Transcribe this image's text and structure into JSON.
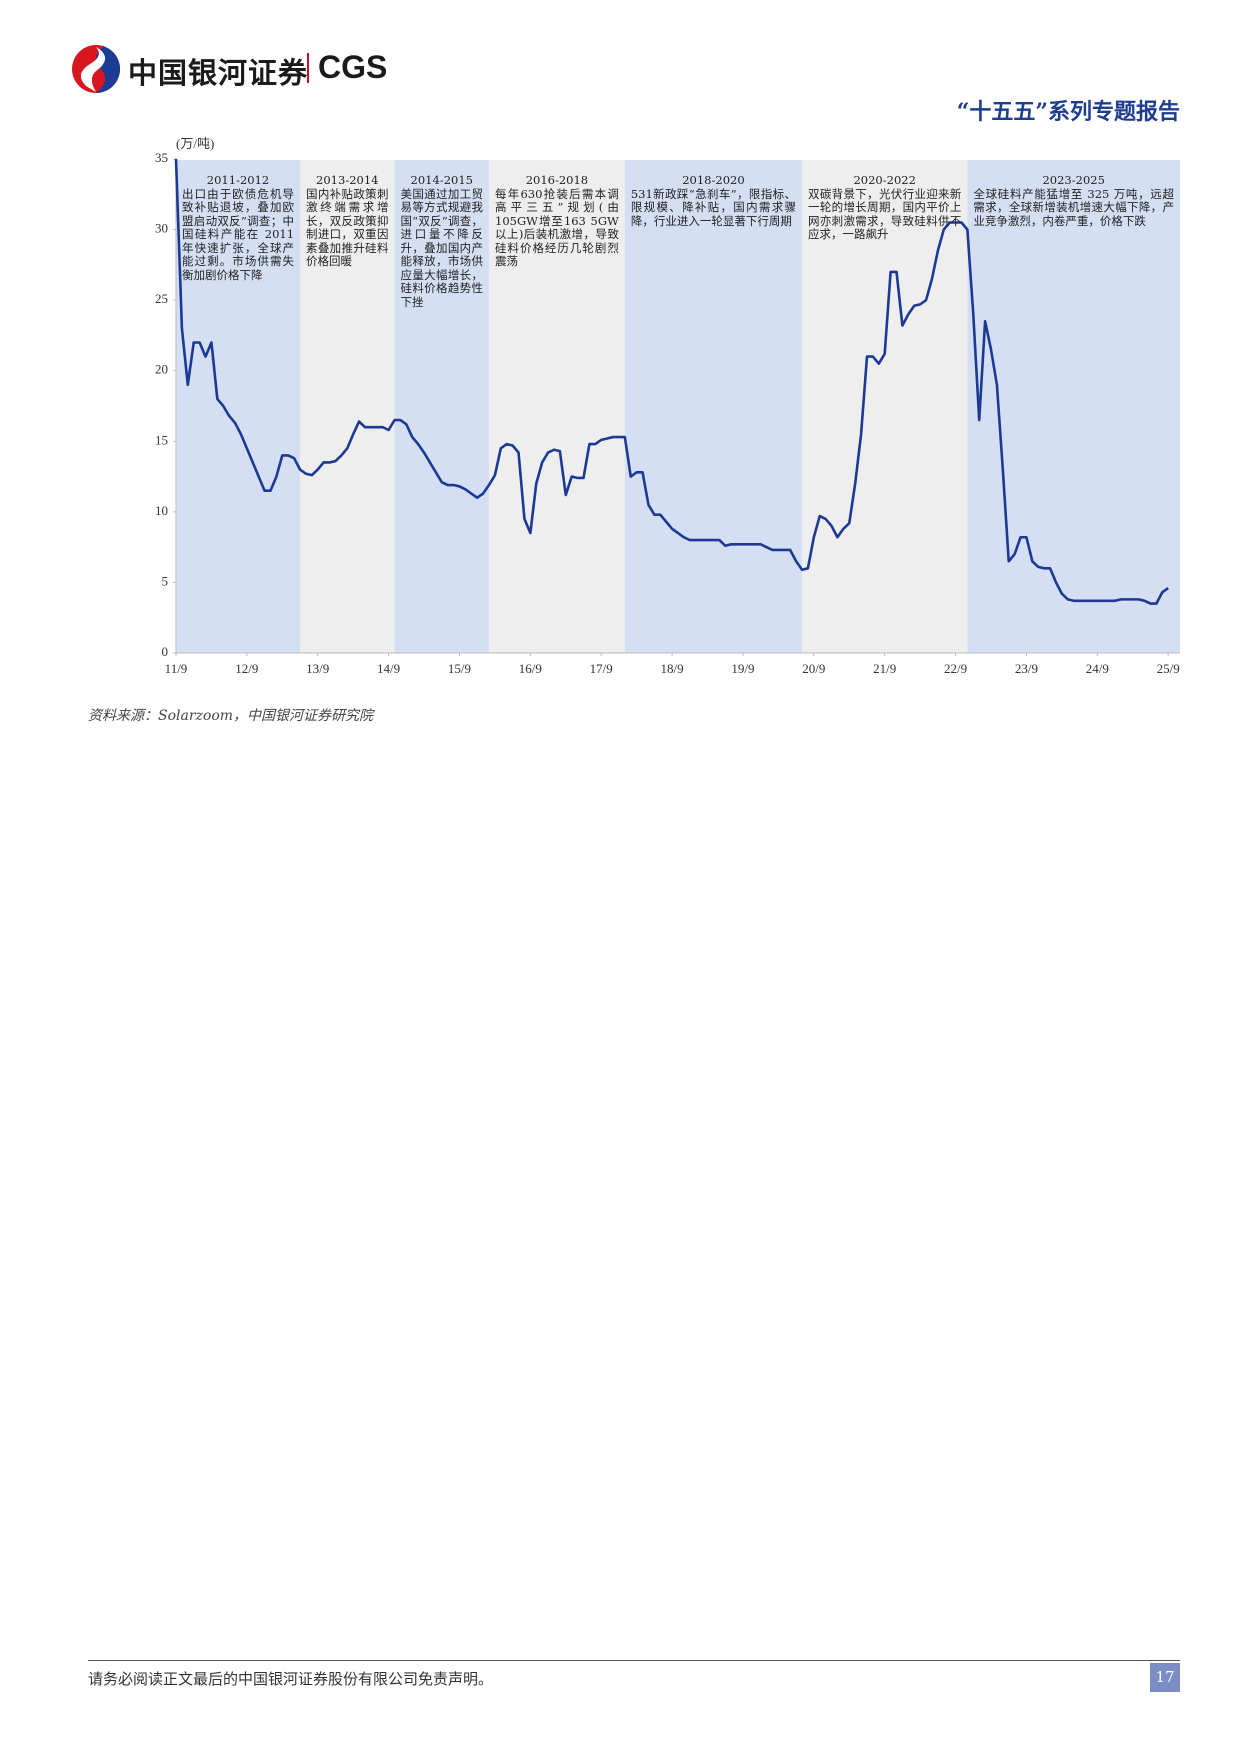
{
  "header": {
    "brand": "中国银河证券",
    "brand_en": "CGS",
    "report": "“十五五”系列专题报告"
  },
  "chart_data": {
    "type": "line",
    "y_label": "(万/吨)",
    "color": "#1c3a94",
    "x": [
      "2011-09",
      "2011-10",
      "2011-11",
      "2011-12",
      "2012-01",
      "2012-02",
      "2012-03",
      "2012-04",
      "2012-05",
      "2012-06",
      "2012-07",
      "2012-08",
      "2012-09",
      "2012-10",
      "2012-11",
      "2012-12",
      "2013-01",
      "2013-02",
      "2013-03",
      "2013-04",
      "2013-05",
      "2013-06",
      "2013-07",
      "2013-08",
      "2013-09",
      "2013-10",
      "2013-11",
      "2013-12",
      "2014-01",
      "2014-02",
      "2014-03",
      "2014-04",
      "2014-05",
      "2014-06",
      "2014-07",
      "2014-08",
      "2014-09",
      "2014-10",
      "2014-11",
      "2014-12",
      "2015-01",
      "2015-02",
      "2015-03",
      "2015-04",
      "2015-05",
      "2015-06",
      "2015-07",
      "2015-08",
      "2015-09",
      "2015-10",
      "2015-11",
      "2015-12",
      "2016-01",
      "2016-02",
      "2016-03",
      "2016-04",
      "2016-05",
      "2016-06",
      "2016-07",
      "2016-08",
      "2016-09",
      "2016-10",
      "2016-11",
      "2016-12",
      "2017-01",
      "2017-02",
      "2017-03",
      "2017-04",
      "2017-05",
      "2017-06",
      "2017-07",
      "2017-08",
      "2017-09",
      "2017-10",
      "2017-11",
      "2017-12",
      "2018-01",
      "2018-02",
      "2018-03",
      "2018-04",
      "2018-05",
      "2018-06",
      "2018-07",
      "2018-08",
      "2018-09",
      "2018-10",
      "2018-11",
      "2018-12",
      "2019-01",
      "2019-02",
      "2019-03",
      "2019-04",
      "2019-05",
      "2019-06",
      "2019-07",
      "2019-08",
      "2019-09",
      "2019-10",
      "2019-11",
      "2019-12",
      "2020-01",
      "2020-02",
      "2020-03",
      "2020-04",
      "2020-05",
      "2020-06",
      "2020-07",
      "2020-08",
      "2020-09",
      "2020-10",
      "2020-11",
      "2020-12",
      "2021-01",
      "2021-02",
      "2021-03",
      "2021-04",
      "2021-05",
      "2021-06",
      "2021-07",
      "2021-08",
      "2021-09",
      "2021-10",
      "2021-11",
      "2021-12",
      "2022-01",
      "2022-02",
      "2022-03",
      "2022-04",
      "2022-05",
      "2022-06",
      "2022-07",
      "2022-08",
      "2022-09",
      "2022-10",
      "2022-11",
      "2022-12",
      "2023-01",
      "2023-02",
      "2023-03",
      "2023-04",
      "2023-05",
      "2023-06",
      "2023-07",
      "2023-08",
      "2023-09",
      "2023-10",
      "2023-11",
      "2023-12",
      "2024-01",
      "2024-02",
      "2024-03",
      "2024-04",
      "2024-05",
      "2024-06",
      "2024-07",
      "2024-08",
      "2024-09",
      "2024-10",
      "2024-11",
      "2024-12",
      "2025-01",
      "2025-02",
      "2025-03",
      "2025-04",
      "2025-05",
      "2025-06",
      "2025-07",
      "2025-08",
      "2025-09"
    ],
    "values": [
      35,
      23,
      19,
      22,
      22,
      21,
      22,
      18,
      17.5,
      16.8,
      16.3,
      15.5,
      14.5,
      13.5,
      12.5,
      11.5,
      11.5,
      12.5,
      14,
      14,
      13.8,
      13,
      12.7,
      12.6,
      13,
      13.5,
      13.5,
      13.6,
      14,
      14.5,
      15.5,
      16.4,
      16,
      16,
      16,
      16,
      15.8,
      16.5,
      16.5,
      16.2,
      15.3,
      14.8,
      14.2,
      13.5,
      12.8,
      12.1,
      11.9,
      11.9,
      11.8,
      11.6,
      11.3,
      11.0,
      11.3,
      11.9,
      12.6,
      14.5,
      14.8,
      14.7,
      14.2,
      9.5,
      8.5,
      12,
      13.5,
      14.2,
      14.4,
      14.3,
      11.2,
      12.5,
      12.4,
      12.4,
      14.8,
      14.8,
      15.1,
      15.2,
      15.3,
      15.3,
      15.3,
      12.5,
      12.8,
      12.8,
      10.5,
      9.8,
      9.8,
      9.3,
      8.8,
      8.5,
      8.2,
      8.0,
      8.0,
      8.0,
      8.0,
      8.0,
      8.0,
      7.6,
      7.7,
      7.7,
      7.7,
      7.7,
      7.7,
      7.7,
      7.5,
      7.3,
      7.3,
      7.3,
      7.3,
      6.5,
      5.9,
      6.0,
      8.2,
      9.7,
      9.5,
      9.0,
      8.2,
      8.8,
      9.2,
      12,
      15.5,
      21,
      21,
      20.5,
      21.2,
      27,
      27,
      23.2,
      24,
      24.6,
      24.7,
      25,
      26.5,
      28.5,
      30,
      30.5,
      30.5,
      30.5,
      30,
      24,
      16.5,
      23.5,
      21.5,
      19,
      13,
      6.5,
      7,
      8.2,
      8.2,
      6.5,
      6.1,
      6.0,
      6.0,
      5,
      4.2,
      3.8,
      3.7,
      3.7,
      3.7,
      3.7,
      3.7,
      3.7,
      3.7,
      3.7,
      3.8,
      3.8,
      3.8,
      3.8,
      3.7,
      3.5,
      3.5,
      4.3,
      4.6
    ],
    "xlim": [
      "2011-09",
      "2025-11"
    ],
    "xticks": [
      {
        "value": "2011-09",
        "label": "11/9"
      },
      {
        "value": "2012-09",
        "label": "12/9"
      },
      {
        "value": "2013-09",
        "label": "13/9"
      },
      {
        "value": "2014-09",
        "label": "14/9"
      },
      {
        "value": "2015-09",
        "label": "15/9"
      },
      {
        "value": "2016-09",
        "label": "16/9"
      },
      {
        "value": "2017-09",
        "label": "17/9"
      },
      {
        "value": "2018-09",
        "label": "18/9"
      },
      {
        "value": "2019-09",
        "label": "19/9"
      },
      {
        "value": "2020-09",
        "label": "20/9"
      },
      {
        "value": "2021-09",
        "label": "21/9"
      },
      {
        "value": "2022-09",
        "label": "22/9"
      },
      {
        "value": "2023-09",
        "label": "23/9"
      },
      {
        "value": "2024-09",
        "label": "24/9"
      },
      {
        "value": "2025-09",
        "label": "25/9"
      }
    ],
    "ylim": [
      0,
      35
    ],
    "yticks": [
      0,
      5,
      10,
      15,
      20,
      25,
      30,
      35
    ],
    "periods": [
      {
        "label": "2011-2012",
        "start": "2011-09",
        "end": "2013-06",
        "color": "#d5dff3",
        "text": "出口由于欧债危机导致补贴退坡，叠加欧盟启动双反”调查；中国硅料产能在 2011 年快速扩张，全球产能过剩。市场供需失衡加剧价格下降"
      },
      {
        "label": "2013-2014",
        "start": "2013-06",
        "end": "2014-10",
        "color": "#eeeeee",
        "text": "国内补贴政策刺激终端需求增长，双反政策抑制进口，双重因素叠加推升硅料价格回暖"
      },
      {
        "label": "2014-2015",
        "start": "2014-10",
        "end": "2016-02",
        "color": "#d5dff3",
        "text": "美国通过加工贸易等方式规避我国“双反”调查，进口量不降反升，叠加国内产能释放，市场供应量大幅增长，硅料价格趋势性下挫"
      },
      {
        "label": "2016-2018",
        "start": "2016-02",
        "end": "2018-01",
        "color": "#eeeeee",
        "text": "每年630抢装后需本调高平三五”规划(由105GW增至163 5GW以上)后装机激增，导致硅料价格经历几轮剧烈震荡"
      },
      {
        "label": "2018-2020",
        "start": "2018-01",
        "end": "2020-07",
        "color": "#d5dff3",
        "text": "531新政踩“急刹车”，限指标、限规模、降补贴，国内需求骤降，行业进入一轮显著下行周期"
      },
      {
        "label": "2020-2022",
        "start": "2020-07",
        "end": "2022-11",
        "color": "#eeeeee",
        "text": "双碳背景下，光伏行业迎来新一轮的增长周期，国内平价上网亦刺激需求，导致硅料供不应求，一路飙升"
      },
      {
        "label": "2023-2025",
        "start": "2022-11",
        "end": "2025-11",
        "color": "#d5dff3",
        "text": "全球硅料产能猛增至 325 万吨，远超需求，全球新增装机增速大幅下降，产业竞争激烈，内卷严重，价格下跌"
      }
    ]
  },
  "source": "资料来源：Solarzoom，中国银河证券研究院",
  "footer": {
    "disclaimer": "请务必阅读正文最后的中国银河证券股份有限公司免责声明。",
    "page": 17
  }
}
